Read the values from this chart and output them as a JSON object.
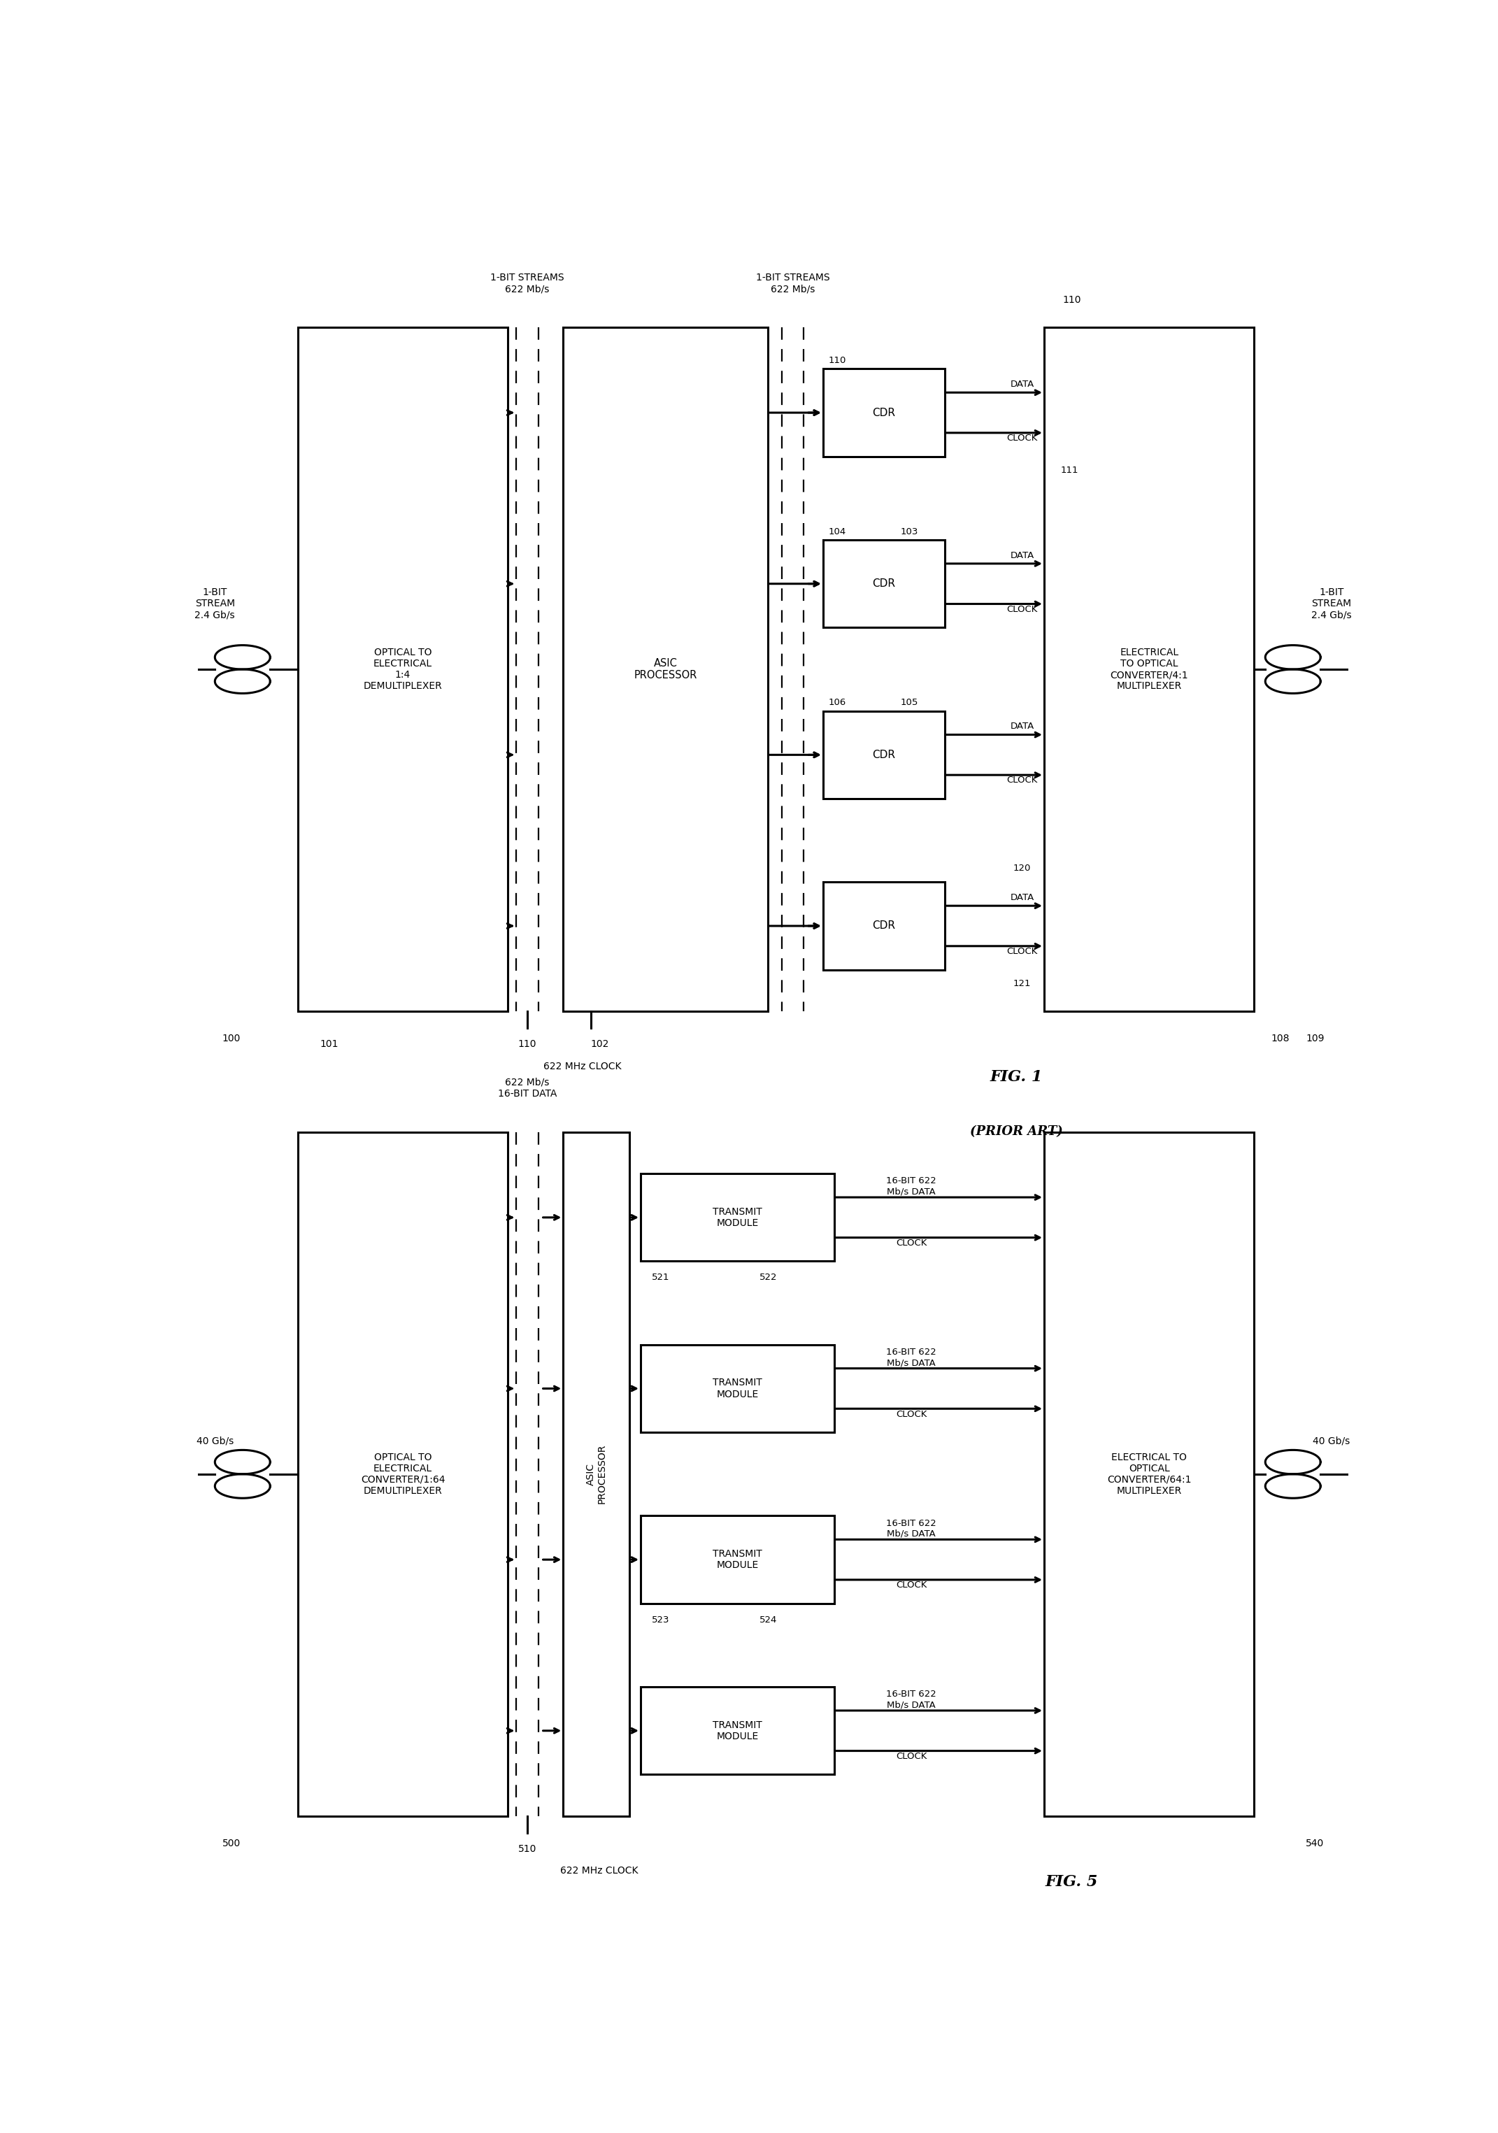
{
  "fig_width": 21.42,
  "fig_height": 30.5,
  "bg_color": "#ffffff",
  "fig1": {
    "title": "FIG. 1",
    "subtitle": "(PRIOR ART)",
    "top_label_left": "1-BIT STREAMS\n622 Mb/s",
    "top_label_right": "1-BIT STREAMS\n622 Mb/s",
    "box1_text": "OPTICAL TO\nELECTRICAL\n1:4\nDEMULTIPLEXER",
    "box2_text": "ASIC\nPROCESSOR",
    "box3_text": "ELECTRICAL\nTO OPTICAL\nCONVERTER/4:1\nMULTIPLEXER",
    "left_stream": "1-BIT\nSTREAM\n2.4 Gb/s",
    "right_stream": "1-BIT\nSTREAM\n2.4 Gb/s",
    "cdr_text": "CDR",
    "data_label": "DATA",
    "clock_label": "CLOCK",
    "clock_bottom": "622 MHz CLOCK",
    "ref_left_coil": "100",
    "ref_right_coil": "109",
    "ref_box1": "101",
    "ref_clock": "110",
    "ref_box2": "102",
    "ref_box3": "108",
    "ref_110_top": "110",
    "ref_104": "104",
    "ref_103": "103",
    "ref_106": "106",
    "ref_105": "105",
    "ref_120": "120",
    "ref_121": "121",
    "ref_111": "111"
  },
  "fig5": {
    "title": "FIG. 5",
    "top_label": "622 Mb/s\n16-BIT DATA",
    "box1_text": "OPTICAL TO\nELECTRICAL\nCONVERTER/1:64\nDEMULTIPLEXER",
    "box2_text": "ASIC\nPROCESSOR",
    "box3_text": "ELECTRICAL TO\nOPTICAL\nCONVERTER/64:1\nMULTIPLEXER",
    "left_stream": "40 Gb/s",
    "right_stream": "40 Gb/s",
    "tm_text": "TRANSMIT\nMODULE",
    "data_label": "16-BIT 622\nMb/s DATA",
    "clock_label": "CLOCK",
    "clock_bottom": "622 MHz CLOCK",
    "ref_left_coil": "500",
    "ref_right_coil": "540",
    "ref_clock": "510",
    "ref_521": "521",
    "ref_522": "522",
    "ref_523": "523",
    "ref_524": "524"
  }
}
